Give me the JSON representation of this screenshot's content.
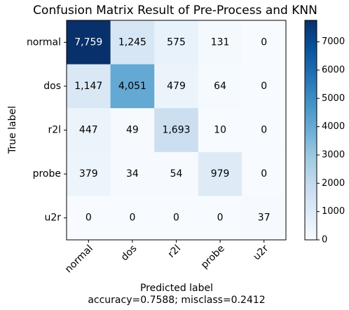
{
  "chart_data": {
    "type": "heatmap",
    "title": "Confusion Matrix Result of Pre-Process and KNN",
    "xlabel": "Predicted label",
    "ylabel": "True label",
    "note": "accuracy=0.7588; misclass=0.2412",
    "categories": [
      "normal",
      "dos",
      "r2l",
      "probe",
      "u2r"
    ],
    "values": [
      [
        7759,
        1245,
        575,
        131,
        0
      ],
      [
        1147,
        4051,
        479,
        64,
        0
      ],
      [
        447,
        49,
        1693,
        10,
        0
      ],
      [
        379,
        34,
        54,
        979,
        0
      ],
      [
        0,
        0,
        0,
        0,
        37
      ]
    ],
    "value_labels": [
      [
        "7,759",
        "1,245",
        "575",
        "131",
        "0"
      ],
      [
        "1,147",
        "4,051",
        "479",
        "64",
        "0"
      ],
      [
        "447",
        "49",
        "1,693",
        "10",
        "0"
      ],
      [
        "379",
        "34",
        "54",
        "979",
        "0"
      ],
      [
        "0",
        "0",
        "0",
        "0",
        "37"
      ]
    ],
    "colormap": "Blues",
    "clim": [
      0,
      7759
    ],
    "cticks": [
      0,
      1000,
      2000,
      3000,
      4000,
      5000,
      6000,
      7000
    ]
  }
}
